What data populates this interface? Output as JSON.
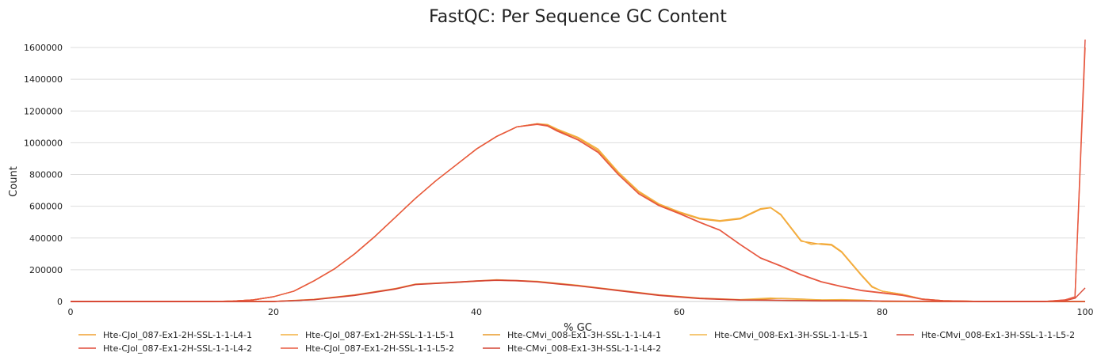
{
  "chart_data": {
    "type": "line",
    "title": "FastQC: Per Sequence GC Content",
    "xlabel": "% GC",
    "ylabel": "Count",
    "xlim": [
      0,
      100
    ],
    "ylim": [
      0,
      1650000
    ],
    "xticks": [
      0,
      20,
      40,
      60,
      80,
      100
    ],
    "yticks": [
      0,
      200000,
      400000,
      600000,
      800000,
      1000000,
      1200000,
      1400000,
      1600000
    ],
    "grid": "horizontal",
    "legend_position": "bottom",
    "series": [
      {
        "name": "Hte-CJol_087-Ex1-2H-SSL-1-1-L4-1",
        "color": "#f0a030",
        "x": [
          0,
          14,
          16,
          18,
          20,
          22,
          24,
          26,
          28,
          30,
          32,
          34,
          36,
          38,
          40,
          42,
          44,
          46,
          47,
          48,
          50,
          52,
          54,
          56,
          58,
          60,
          62,
          64,
          66,
          68,
          69,
          70,
          72,
          74,
          75,
          76,
          78,
          79,
          80,
          82,
          84,
          86,
          90,
          100
        ],
        "y": [
          0,
          0,
          3000,
          10000,
          30000,
          65000,
          130000,
          205000,
          300000,
          410000,
          530000,
          650000,
          760000,
          860000,
          960000,
          1040000,
          1100000,
          1120000,
          1110000,
          1080000,
          1030000,
          950000,
          810000,
          690000,
          610000,
          560000,
          520000,
          505000,
          520000,
          580000,
          590000,
          545000,
          380000,
          360000,
          355000,
          310000,
          160000,
          90000,
          65000,
          45000,
          15000,
          5000,
          0,
          0
        ]
      },
      {
        "name": "Hte-CJol_087-Ex1-2H-SSL-1-1-L5-1",
        "color": "#f4b040",
        "x": [
          0,
          14,
          16,
          18,
          20,
          22,
          24,
          26,
          28,
          30,
          32,
          34,
          36,
          38,
          40,
          42,
          44,
          46,
          47,
          48,
          50,
          52,
          54,
          56,
          58,
          60,
          62,
          64,
          66,
          68,
          69,
          70,
          72,
          73,
          74,
          75,
          76,
          78,
          79,
          80,
          82,
          84,
          86,
          90,
          100
        ],
        "y": [
          0,
          0,
          3000,
          10000,
          30000,
          65000,
          130000,
          205000,
          300000,
          410000,
          530000,
          650000,
          760000,
          860000,
          960000,
          1040000,
          1100000,
          1120000,
          1115000,
          1085000,
          1035000,
          960000,
          815000,
          695000,
          615000,
          565000,
          525000,
          510000,
          525000,
          585000,
          592000,
          550000,
          385000,
          360000,
          365000,
          360000,
          315000,
          165000,
          95000,
          65000,
          45000,
          15000,
          5000,
          0,
          0
        ]
      },
      {
        "name": "Hte-CMvi_008-Ex1-3H-SSL-1-1-L4-1",
        "color": "#e89a28",
        "x": [
          0,
          20,
          24,
          28,
          32,
          34,
          38,
          42,
          46,
          50,
          54,
          58,
          62,
          66,
          70,
          74,
          78,
          80,
          84,
          86,
          90,
          96,
          100
        ],
        "y": [
          0,
          0,
          12000,
          40000,
          80000,
          108000,
          120000,
          135000,
          125000,
          100000,
          70000,
          40000,
          20000,
          10000,
          20000,
          10000,
          8000,
          0,
          0,
          0,
          0,
          0,
          0
        ]
      },
      {
        "name": "Hte-CMvi_008-Ex1-3H-SSL-1-1-L5-1",
        "color": "#f2b64a",
        "x": [
          0,
          20,
          24,
          28,
          32,
          34,
          38,
          42,
          46,
          50,
          54,
          58,
          62,
          66,
          69,
          72,
          74,
          76,
          78,
          80,
          84,
          90,
          100
        ],
        "y": [
          0,
          0,
          14000,
          42000,
          82000,
          110000,
          122000,
          137000,
          127000,
          102000,
          72000,
          42000,
          22000,
          12000,
          22000,
          12000,
          10000,
          12000,
          9000,
          0,
          0,
          0,
          0
        ]
      },
      {
        "name": "Hte-CMvi_008-Ex1-3H-SSL-1-1-L5-2",
        "color": "#d94a38",
        "x": [
          0,
          20,
          24,
          28,
          32,
          34,
          36,
          38,
          40,
          42,
          44,
          46,
          48,
          50,
          54,
          58,
          62,
          66,
          70,
          74,
          80,
          84,
          86,
          90,
          96,
          98,
          99,
          100
        ],
        "y": [
          0,
          0,
          12000,
          40000,
          80000,
          108000,
          115000,
          122000,
          130000,
          135000,
          132000,
          125000,
          112000,
          100000,
          70000,
          40000,
          20000,
          10000,
          8000,
          5000,
          3000,
          2000,
          1000,
          0,
          0,
          5000,
          20000,
          85000
        ]
      },
      {
        "name": "Hte-CJol_087-Ex1-2H-SSL-1-1-L4-2",
        "color": "#e04b3a",
        "x": [
          0,
          14,
          16,
          18,
          20,
          22,
          24,
          26,
          28,
          30,
          32,
          34,
          36,
          38,
          40,
          42,
          44,
          46,
          47,
          48,
          50,
          52,
          54,
          56,
          58,
          60,
          62,
          64,
          66,
          68,
          70,
          72,
          74,
          76,
          78,
          80,
          82,
          84,
          86,
          90,
          96,
          98,
          99,
          100
        ],
        "y": [
          0,
          0,
          3000,
          10000,
          30000,
          65000,
          130000,
          205000,
          300000,
          410000,
          530000,
          650000,
          760000,
          860000,
          960000,
          1040000,
          1100000,
          1118000,
          1108000,
          1075000,
          1020000,
          940000,
          800000,
          680000,
          605000,
          555000,
          500000,
          450000,
          360000,
          275000,
          225000,
          170000,
          125000,
          95000,
          70000,
          55000,
          40000,
          15000,
          5000,
          0,
          0,
          10000,
          30000,
          1650000
        ]
      },
      {
        "name": "Hte-CJol_087-Ex1-2H-SSL-1-1-L5-2",
        "color": "#e85a40",
        "x": [
          0,
          14,
          16,
          18,
          20,
          22,
          24,
          26,
          28,
          30,
          32,
          34,
          36,
          38,
          40,
          42,
          44,
          46,
          47,
          48,
          50,
          52,
          54,
          56,
          58,
          60,
          62,
          64,
          66,
          68,
          70,
          72,
          74,
          76,
          78,
          80,
          82,
          84,
          86,
          90,
          96,
          98,
          99,
          100
        ],
        "y": [
          0,
          0,
          3000,
          10000,
          30000,
          65000,
          130000,
          205000,
          300000,
          410000,
          530000,
          650000,
          760000,
          860000,
          960000,
          1040000,
          1100000,
          1115000,
          1105000,
          1072000,
          1018000,
          938000,
          798000,
          678000,
          603000,
          553000,
          498000,
          448000,
          358000,
          273000,
          223000,
          168000,
          123000,
          93000,
          68000,
          53000,
          38000,
          13000,
          4000,
          0,
          0,
          9000,
          28000,
          1600000
        ]
      },
      {
        "name": "Hte-CMvi_008-Ex1-3H-SSL-1-1-L4-2",
        "color": "#d44434",
        "x": [
          0,
          20,
          24,
          28,
          32,
          34,
          36,
          38,
          40,
          42,
          44,
          46,
          48,
          50,
          54,
          58,
          62,
          66,
          70,
          74,
          80,
          84,
          86,
          90,
          96,
          100
        ],
        "y": [
          0,
          0,
          11000,
          38000,
          78000,
          106000,
          113000,
          120000,
          128000,
          133000,
          130000,
          123000,
          110000,
          98000,
          68000,
          38000,
          18000,
          9000,
          7000,
          4000,
          2000,
          1000,
          0,
          0,
          0,
          0
        ]
      }
    ]
  },
  "legend": {
    "row1": [
      {
        "label": "Hte-CJol_087-Ex1-2H-SSL-1-1-L4-1",
        "color": "#f0a030"
      },
      {
        "label": "Hte-CJol_087-Ex1-2H-SSL-1-1-L5-1",
        "color": "#f4b040"
      },
      {
        "label": "Hte-CMvi_008-Ex1-3H-SSL-1-1-L4-1",
        "color": "#e89a28"
      },
      {
        "label": "Hte-CMvi_008-Ex1-3H-SSL-1-1-L5-1",
        "color": "#f2b64a"
      },
      {
        "label": "Hte-CMvi_008-Ex1-3H-SSL-1-1-L5-2",
        "color": "#d94a38"
      }
    ],
    "row2": [
      {
        "label": "Hte-CJol_087-Ex1-2H-SSL-1-1-L4-2",
        "color": "#e04b3a"
      },
      {
        "label": "Hte-CJol_087-Ex1-2H-SSL-1-1-L5-2",
        "color": "#e85a40"
      },
      {
        "label": "Hte-CMvi_008-Ex1-3H-SSL-1-1-L4-2",
        "color": "#d44434"
      }
    ]
  }
}
